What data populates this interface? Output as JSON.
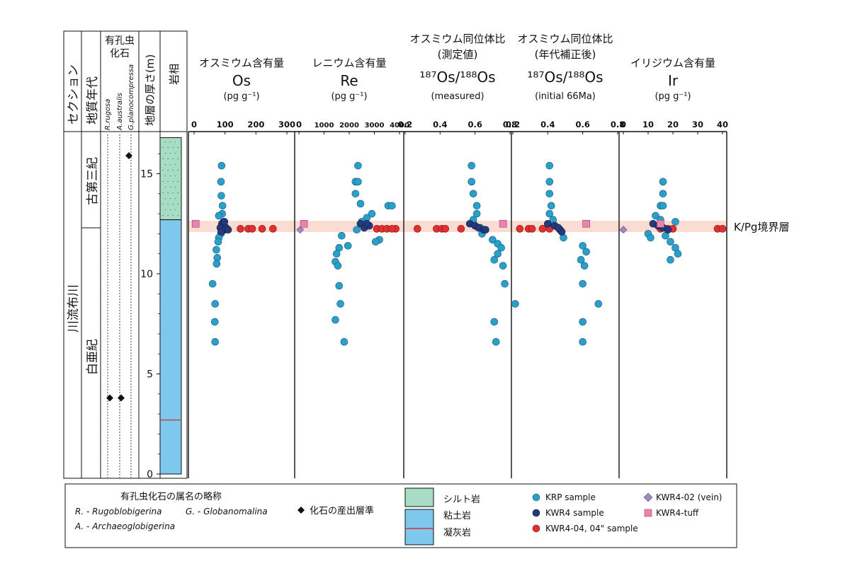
{
  "left_columns": {
    "section": "セクション",
    "geologic_age": "地質年代",
    "foraminifera": "有孔虫化石",
    "species": [
      "R.rugosa",
      "A.australis",
      "G.planocompressa"
    ],
    "thickness": "地層の厚さ(m)",
    "lithology": "岩相",
    "section_name": "川流布川",
    "paleogene": "古第三紀",
    "cretaceous": "白亜紀",
    "depth_ticks": [
      "0",
      "5",
      "10",
      "15"
    ]
  },
  "kpg_label": "K/Pg境界層",
  "legend": {
    "abbr_title": "有孔虫化石の属名の略称",
    "abbr_r": "R. - Rugoblobigerina",
    "abbr_g": "G. - Globanomalina",
    "abbr_a": "A. - Archaeoglobigerina",
    "fossil_level": "化石の産出層準",
    "siltstone": "シルト岩",
    "claystone": "粘土岩",
    "tuff": "凝灰岩",
    "krp": "KRP sample",
    "kwr4": "KWR4 sample",
    "kwr404": "KWR4-04, 04\" sample",
    "vein": "KWR4-02 (vein)",
    "tuff_sample": "KWR4-tuff"
  },
  "colors": {
    "krp": "#2a9fc9",
    "kwr4": "#243a7c",
    "kwr404": "#e03030",
    "vein": "#9f8ac0",
    "tuff_sample": "#e985ac",
    "siltstone": "#a8dcc4",
    "claystone": "#7ec8ee",
    "kpg_band": "#fbdcd2"
  },
  "chart_data": {
    "type": "scatter",
    "y_axis": {
      "label": "地層の厚さ(m)",
      "range": [
        0,
        17
      ],
      "ticks": [
        0,
        5,
        10,
        15
      ]
    },
    "kpg_boundary_m": 12.4,
    "fossil_markers": [
      {
        "species": "R.rugosa",
        "depths": [
          3.8
        ]
      },
      {
        "species": "A.australis",
        "depths": [
          3.8
        ]
      },
      {
        "species": "G.planocompressa",
        "depths": [
          15.9
        ]
      }
    ],
    "lithology": [
      {
        "type": "siltstone",
        "from": 12.7,
        "to": 16.8
      },
      {
        "type": "claystone",
        "from": 0,
        "to": 12.7
      },
      {
        "type": "tuff",
        "at": 2.7
      }
    ],
    "panels": [
      {
        "key": "os",
        "title": [
          "オスミウム含有量",
          "Os",
          "(pg g⁻¹)"
        ],
        "range": [
          0,
          300
        ],
        "ticks": [
          "0",
          "100",
          "200",
          "300"
        ],
        "tick_values": [
          0,
          100,
          200,
          300
        ],
        "series": {
          "krp": [
            [
              89,
              15.4
            ],
            [
              87,
              14.6
            ],
            [
              88,
              13.9
            ],
            [
              92,
              13.4
            ],
            [
              91,
              13.0
            ],
            [
              95,
              12.6
            ],
            [
              98,
              12.3
            ],
            [
              87,
              12.0
            ],
            [
              80,
              11.8
            ],
            [
              78,
              11.6
            ],
            [
              72,
              11.2
            ],
            [
              75,
              10.8
            ],
            [
              73,
              10.5
            ],
            [
              60,
              9.5
            ],
            [
              68,
              8.5
            ],
            [
              67,
              7.6
            ],
            [
              68,
              6.6
            ],
            [
              80,
              12.9
            ]
          ],
          "kwr4": [
            [
              90,
              12.5
            ],
            [
              95,
              12.4
            ],
            [
              99,
              12.2
            ],
            [
              85,
              12.3
            ],
            [
              88,
              12.1
            ],
            [
              103,
              12.3
            ],
            [
              110,
              12.2
            ],
            [
              98,
              12.6
            ]
          ],
          "kwr404": [
            [
              150,
              12.25
            ],
            [
              175,
              12.25
            ],
            [
              188,
              12.25
            ],
            [
              220,
              12.25
            ],
            [
              255,
              12.25
            ]
          ],
          "vein": [],
          "tuff": [
            [
              5,
              12.5
            ]
          ]
        }
      },
      {
        "key": "re",
        "title": [
          "レニウム含有量",
          "Re",
          "(pg g⁻¹)"
        ],
        "range": [
          0,
          4000
        ],
        "ticks": [
          "0",
          "1000",
          "2000",
          "3000",
          "4000"
        ],
        "tick_values": [
          0,
          1000,
          2000,
          3000,
          4000
        ],
        "series": {
          "krp": [
            [
              2350,
              15.4
            ],
            [
              2250,
              14.6
            ],
            [
              2350,
              14.6
            ],
            [
              2250,
              14.0
            ],
            [
              2450,
              13.5
            ],
            [
              3550,
              13.4
            ],
            [
              3700,
              13.4
            ],
            [
              2900,
              13.0
            ],
            [
              2700,
              12.8
            ],
            [
              2500,
              12.6
            ],
            [
              2300,
              12.2
            ],
            [
              1700,
              11.9
            ],
            [
              3200,
              11.7
            ],
            [
              3050,
              11.6
            ],
            [
              1950,
              11.4
            ],
            [
              1600,
              11.3
            ],
            [
              1500,
              11.0
            ],
            [
              1450,
              10.6
            ],
            [
              1550,
              10.4
            ],
            [
              1600,
              9.4
            ],
            [
              1650,
              8.5
            ],
            [
              1450,
              7.7
            ],
            [
              1800,
              6.6
            ]
          ],
          "kwr4": [
            [
              2450,
              12.5
            ],
            [
              2600,
              12.3
            ],
            [
              2800,
              12.4
            ],
            [
              2700,
              12.5
            ]
          ],
          "kwr404": [
            [
              3100,
              12.25
            ],
            [
              3300,
              12.25
            ],
            [
              3500,
              12.25
            ],
            [
              3850,
              12.25
            ],
            [
              3700,
              12.25
            ]
          ],
          "vein": [
            [
              50,
              12.2
            ]
          ],
          "tuff": [
            [
              200,
              12.5
            ]
          ]
        }
      },
      {
        "key": "os_measured",
        "title": [
          "オスミウム同位体比",
          "(測定値)",
          "¹⁸⁷Os/¹⁸⁸Os",
          "(measured)"
        ],
        "range": [
          0.2,
          0.8
        ],
        "ticks": [
          "0.2",
          "0.4",
          "0.6",
          "0.8"
        ],
        "tick_values": [
          0.2,
          0.4,
          0.6,
          0.8
        ],
        "series": {
          "krp": [
            [
              0.58,
              15.4
            ],
            [
              0.58,
              14.6
            ],
            [
              0.59,
              14.0
            ],
            [
              0.61,
              13.4
            ],
            [
              0.61,
              13.0
            ],
            [
              0.59,
              12.7
            ],
            [
              0.64,
              12.0
            ],
            [
              0.7,
              11.7
            ],
            [
              0.73,
              11.5
            ],
            [
              0.75,
              11.3
            ],
            [
              0.73,
              11.0
            ],
            [
              0.71,
              10.7
            ],
            [
              0.76,
              10.4
            ],
            [
              0.77,
              9.5
            ],
            [
              0.83,
              8.5
            ],
            [
              0.71,
              7.6
            ],
            [
              0.72,
              6.6
            ],
            [
              0.63,
              12.3
            ]
          ],
          "kwr4": [
            [
              0.57,
              12.5
            ],
            [
              0.6,
              12.4
            ],
            [
              0.62,
              12.3
            ],
            [
              0.65,
              12.2
            ],
            [
              0.66,
              12.2
            ]
          ],
          "kwr404": [
            [
              0.27,
              12.25
            ],
            [
              0.38,
              12.25
            ],
            [
              0.41,
              12.25
            ],
            [
              0.43,
              12.25
            ],
            [
              0.52,
              12.25
            ]
          ],
          "vein": [],
          "tuff": [
            [
              0.76,
              12.5
            ]
          ]
        }
      },
      {
        "key": "os_initial",
        "title": [
          "オスミウム同位体比",
          "(年代補正後)",
          "¹⁸⁷Os/¹⁸⁸Os",
          "(initial 66Ma)"
        ],
        "range": [
          0.2,
          0.8
        ],
        "ticks": [
          "0.2",
          "0.4",
          "0.6",
          "0.8"
        ],
        "tick_values": [
          0.2,
          0.4,
          0.6,
          0.8
        ],
        "series": {
          "krp": [
            [
              0.41,
              15.4
            ],
            [
              0.41,
              14.6
            ],
            [
              0.41,
              14.0
            ],
            [
              0.42,
              13.4
            ],
            [
              0.41,
              13.0
            ],
            [
              0.43,
              12.7
            ],
            [
              0.49,
              11.8
            ],
            [
              0.6,
              11.4
            ],
            [
              0.62,
              11.1
            ],
            [
              0.59,
              10.7
            ],
            [
              0.61,
              10.4
            ],
            [
              0.6,
              9.5
            ],
            [
              0.69,
              8.5
            ],
            [
              0.6,
              7.6
            ],
            [
              0.6,
              6.6
            ]
          ],
          "kwr4": [
            [
              0.4,
              12.5
            ],
            [
              0.44,
              12.4
            ],
            [
              0.47,
              12.2
            ],
            [
              0.48,
              12.1
            ],
            [
              0.46,
              12.3
            ]
          ],
          "kwr404": [
            [
              0.24,
              12.25
            ],
            [
              0.29,
              12.25
            ],
            [
              0.31,
              12.25
            ],
            [
              0.37,
              12.25
            ],
            [
              0.41,
              12.25
            ]
          ],
          "vein": [],
          "tuff": [
            [
              0.62,
              12.5
            ]
          ]
        }
      },
      {
        "key": "ir",
        "title": [
          "イリジウム含有量",
          "Ir",
          "(pg g⁻¹)"
        ],
        "range": [
          0,
          40
        ],
        "ticks": [
          "0",
          "10",
          "20",
          "30",
          "40"
        ],
        "tick_values": [
          0,
          10,
          20,
          30,
          40
        ],
        "series": {
          "krp": [
            [
              16,
              14.6
            ],
            [
              16,
              14.0
            ],
            [
              15,
              13.4
            ],
            [
              16,
              13.4
            ],
            [
              13,
              12.9
            ],
            [
              15,
              12.7
            ],
            [
              21,
              12.6
            ],
            [
              10,
              12.0
            ],
            [
              11,
              11.8
            ],
            [
              17,
              11.9
            ],
            [
              19,
              11.6
            ],
            [
              21,
              11.3
            ],
            [
              22,
              11.0
            ],
            [
              19,
              10.7
            ]
          ],
          "kwr4": [
            [
              12,
              12.5
            ],
            [
              14,
              12.4
            ],
            [
              16,
              12.3
            ],
            [
              18,
              12.2
            ]
          ],
          "kwr404": [
            [
              15,
              12.25
            ],
            [
              18,
              12.25
            ],
            [
              38,
              12.25
            ],
            [
              40,
              12.25
            ],
            [
              20,
              12.25
            ]
          ],
          "vein": [
            [
              0,
              12.2
            ]
          ],
          "tuff": [
            [
              15,
              12.5
            ]
          ]
        }
      }
    ]
  }
}
